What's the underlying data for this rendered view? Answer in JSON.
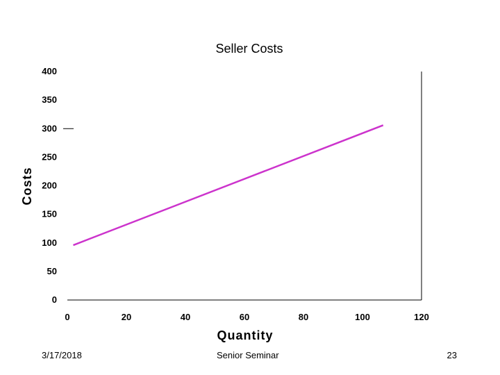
{
  "chart_data": {
    "type": "line",
    "title": "Seller Costs",
    "xlabel": "Quantity",
    "ylabel": "Costs",
    "xlim": [
      0,
      120
    ],
    "ylim": [
      0,
      400
    ],
    "xticks": [
      "0",
      "20",
      "40",
      "60",
      "80",
      "100",
      "120"
    ],
    "yticks": [
      "0",
      "50",
      "100",
      "150",
      "200",
      "250",
      "300",
      "350",
      "400"
    ],
    "grid": false,
    "legend": "none",
    "series": [
      {
        "color": "#cc33cc",
        "x": [
          2,
          107
        ],
        "y": [
          96,
          306
        ]
      }
    ],
    "annotations": [
      {
        "type": "tick-mark",
        "y": 300
      }
    ]
  },
  "footer": {
    "date": "3/17/2018",
    "center": "Senior Seminar",
    "page": "23"
  }
}
